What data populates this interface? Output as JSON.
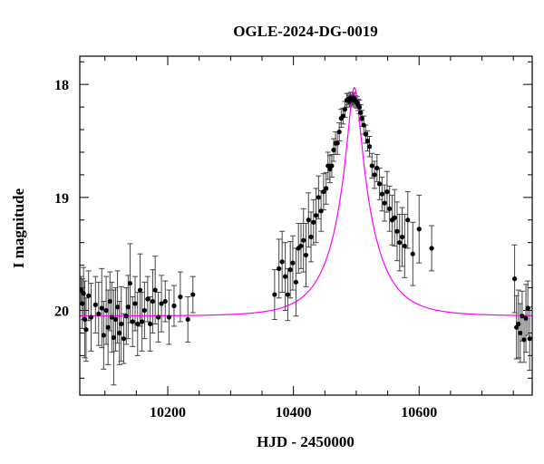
{
  "chart_data": {
    "type": "scatter",
    "title": "OGLE-2024-DG-0019",
    "xlabel": "HJD - 2450000",
    "ylabel": "I magnitude",
    "xlim": [
      10060,
      10780
    ],
    "ylim": [
      20.75,
      17.75
    ],
    "y_inverted": true,
    "x_ticks": [
      10200,
      10400,
      10600
    ],
    "y_ticks": [
      18,
      19,
      20
    ],
    "grid": false,
    "colors": {
      "points": "#000000",
      "errorbars": "#444444",
      "model": "#ff00ff",
      "axes": "#000000"
    },
    "model": {
      "name": "",
      "t0": 10497,
      "tE": 62,
      "u0": 0.15,
      "baseline_mag": 20.05,
      "blend_fraction": 0.95
    },
    "series": [
      {
        "name": "",
        "points": [
          [
            10062,
            19.82,
            0.12
          ],
          [
            10064,
            19.94,
            0.22
          ],
          [
            10066,
            19.85,
            0.23
          ],
          [
            10068,
            20.08,
            0.34
          ],
          [
            10070,
            20.17,
            0.28
          ],
          [
            10074,
            19.87,
            0.22
          ],
          [
            10078,
            20.06,
            0.3
          ],
          [
            10085,
            19.95,
            0.25
          ],
          [
            10090,
            20.03,
            0.28
          ],
          [
            10095,
            19.98,
            0.35
          ],
          [
            10098,
            20.22,
            0.3
          ],
          [
            10102,
            20.0,
            0.3
          ],
          [
            10105,
            20.15,
            0.33
          ],
          [
            10108,
            19.92,
            0.26
          ],
          [
            10111,
            20.06,
            0.31
          ],
          [
            10114,
            20.24,
            0.42
          ],
          [
            10117,
            20.08,
            0.28
          ],
          [
            10120,
            19.97,
            0.32
          ],
          [
            10123,
            20.2,
            0.28
          ],
          [
            10126,
            20.12,
            0.33
          ],
          [
            10130,
            20.25,
            0.22
          ],
          [
            10134,
            20.05,
            0.25
          ],
          [
            10137,
            19.97,
            0.28
          ],
          [
            10140,
            19.76,
            0.35
          ],
          [
            10144,
            20.1,
            0.22
          ],
          [
            10148,
            19.94,
            0.24
          ],
          [
            10152,
            20.12,
            0.28
          ],
          [
            10156,
            19.82,
            0.32
          ],
          [
            10159,
            20.1,
            0.26
          ],
          [
            10163,
            20.0,
            0.25
          ],
          [
            10168,
            19.9,
            0.2
          ],
          [
            10172,
            20.12,
            0.24
          ],
          [
            10176,
            19.92,
            0.28
          ],
          [
            10180,
            19.82,
            0.3
          ],
          [
            10185,
            20.06,
            0.22
          ],
          [
            10190,
            19.94,
            0.25
          ],
          [
            10196,
            19.92,
            0.18
          ],
          [
            10202,
            20.06,
            0.24
          ],
          [
            10210,
            19.96,
            0.18
          ],
          [
            10220,
            19.88,
            0.22
          ],
          [
            10232,
            20.08,
            0.2
          ],
          [
            10240,
            19.86,
            0.16
          ],
          [
            10370,
            19.86,
            0.22
          ],
          [
            10377,
            19.63,
            0.26
          ],
          [
            10382,
            19.57,
            0.27
          ],
          [
            10387,
            19.7,
            0.3
          ],
          [
            10391,
            19.86,
            0.23
          ],
          [
            10395,
            19.64,
            0.25
          ],
          [
            10399,
            19.58,
            0.24
          ],
          [
            10404,
            19.75,
            0.3
          ],
          [
            10408,
            19.45,
            0.22
          ],
          [
            10412,
            19.43,
            0.2
          ],
          [
            10416,
            19.38,
            0.28
          ],
          [
            10420,
            19.51,
            0.28
          ],
          [
            10424,
            19.2,
            0.24
          ],
          [
            10428,
            19.35,
            0.22
          ],
          [
            10432,
            19.22,
            0.2
          ],
          [
            10436,
            19.16,
            0.24
          ],
          [
            10440,
            19.0,
            0.19
          ],
          [
            10444,
            19.12,
            0.18
          ],
          [
            10448,
            18.95,
            0.16
          ],
          [
            10452,
            18.92,
            0.14
          ],
          [
            10455,
            18.72,
            0.12
          ],
          [
            10458,
            18.75,
            0.12
          ],
          [
            10461,
            18.72,
            0.1
          ],
          [
            10464,
            18.58,
            0.1
          ],
          [
            10467,
            18.52,
            0.1
          ],
          [
            10470,
            18.52,
            0.1
          ],
          [
            10473,
            18.42,
            0.08
          ],
          [
            10476,
            18.3,
            0.08
          ],
          [
            10479,
            18.28,
            0.07
          ],
          [
            10482,
            18.22,
            0.07
          ],
          [
            10485,
            18.14,
            0.06
          ],
          [
            10487,
            18.13,
            0.05
          ],
          [
            10489,
            18.15,
            0.05
          ],
          [
            10491,
            18.12,
            0.05
          ],
          [
            10493,
            18.14,
            0.05
          ],
          [
            10495,
            18.12,
            0.05
          ],
          [
            10497,
            18.13,
            0.05
          ],
          [
            10499,
            18.15,
            0.05
          ],
          [
            10501,
            18.16,
            0.05
          ],
          [
            10503,
            18.18,
            0.05
          ],
          [
            10505,
            18.2,
            0.06
          ],
          [
            10507,
            18.25,
            0.07
          ],
          [
            10509,
            18.3,
            0.07
          ],
          [
            10512,
            18.36,
            0.08
          ],
          [
            10515,
            18.44,
            0.08
          ],
          [
            10518,
            18.5,
            0.09
          ],
          [
            10521,
            18.55,
            0.09
          ],
          [
            10525,
            18.72,
            0.11
          ],
          [
            10529,
            18.8,
            0.12
          ],
          [
            10533,
            18.74,
            0.12
          ],
          [
            10537,
            18.88,
            0.14
          ],
          [
            10541,
            18.97,
            0.15
          ],
          [
            10545,
            19.05,
            0.16
          ],
          [
            10549,
            18.95,
            0.18
          ],
          [
            10553,
            19.1,
            0.2
          ],
          [
            10557,
            19.2,
            0.22
          ],
          [
            10561,
            19.18,
            0.25
          ],
          [
            10565,
            19.3,
            0.26
          ],
          [
            10569,
            19.4,
            0.25
          ],
          [
            10573,
            19.35,
            0.26
          ],
          [
            10577,
            19.43,
            0.28
          ],
          [
            10582,
            19.2,
            0.25
          ],
          [
            10590,
            19.5,
            0.28
          ],
          [
            10600,
            19.28,
            0.3
          ],
          [
            10620,
            19.45,
            0.2
          ],
          [
            10752,
            19.72,
            0.3
          ],
          [
            10755,
            20.15,
            0.28
          ],
          [
            10758,
            20.12,
            0.3
          ],
          [
            10761,
            20.2,
            0.26
          ],
          [
            10764,
            20.05,
            0.22
          ],
          [
            10767,
            20.26,
            0.2
          ],
          [
            10770,
            20.07,
            0.3
          ],
          [
            10773,
            19.98,
            0.24
          ],
          [
            10776,
            20.25,
            0.28
          ]
        ]
      }
    ]
  }
}
